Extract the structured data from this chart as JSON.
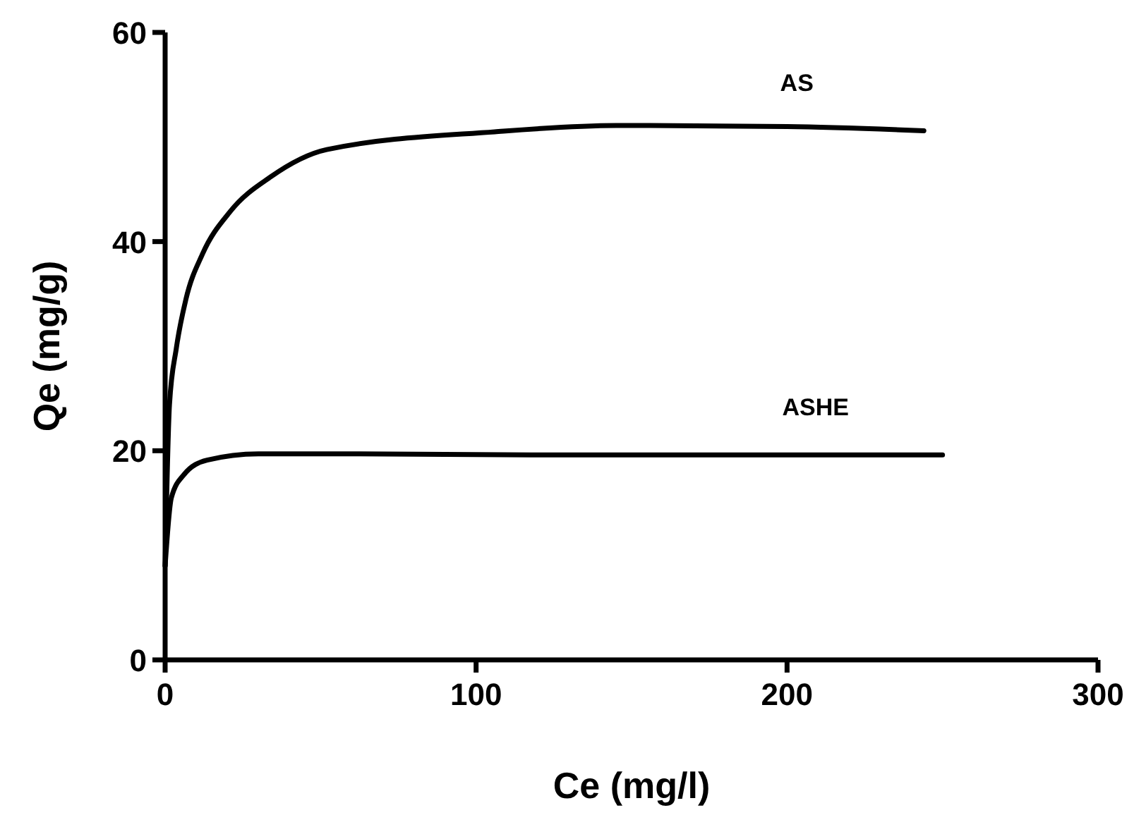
{
  "chart_data": {
    "type": "line",
    "xlabel": "Ce (mg/l)",
    "ylabel": "Qe (mg/g)",
    "xlim": [
      0,
      300
    ],
    "ylim": [
      0,
      60
    ],
    "xticks": [
      0,
      100,
      200,
      300
    ],
    "yticks": [
      0,
      20,
      40,
      60
    ],
    "grid": false,
    "marker": "none",
    "line_style": "solid",
    "series": [
      {
        "name": "AS",
        "color": "#000000",
        "x": [
          0,
          1.4,
          3.6,
          6.7,
          12,
          21,
          34,
          52,
          106,
          145,
          200,
          244
        ],
        "values": [
          9,
          24.4,
          29.8,
          34.5,
          38.8,
          42.9,
          46.2,
          48.8,
          50.5,
          51.1,
          51,
          50.6
        ]
      },
      {
        "name": "ASHE",
        "color": "#000000",
        "x": [
          0,
          2,
          6,
          13.5,
          30,
          60,
          120,
          200,
          250
        ],
        "values": [
          9,
          15.5,
          17.7,
          19.1,
          19.7,
          19.7,
          19.6,
          19.6,
          19.6
        ]
      }
    ]
  }
}
